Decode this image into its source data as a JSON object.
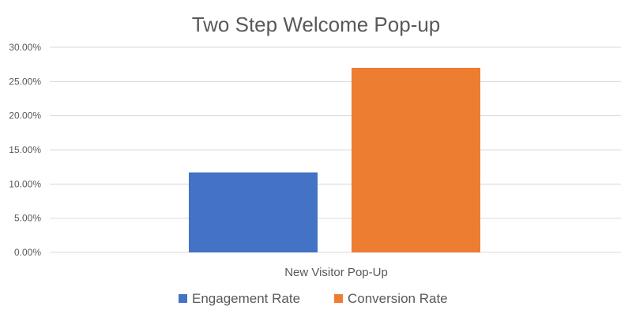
{
  "chart_data": {
    "type": "bar",
    "title": "Two Step Welcome Pop-up",
    "categories": [
      "New Visitor Pop-Up"
    ],
    "series": [
      {
        "name": "Engagement Rate",
        "values": [
          0.117
        ],
        "color": "#4472C4"
      },
      {
        "name": "Conversion Rate",
        "values": [
          0.27
        ],
        "color": "#ED7D31"
      }
    ],
    "ylim": [
      0,
      0.3
    ],
    "yticks": [
      0,
      0.05,
      0.1,
      0.15,
      0.2,
      0.25,
      0.3
    ],
    "ytick_labels": [
      "0.00%",
      "5.00%",
      "10.00%",
      "15.00%",
      "20.00%",
      "25.00%",
      "30.00%"
    ],
    "grid": true,
    "legend": "bottom",
    "colors": {
      "title": "#595959",
      "axis_text": "#595959",
      "grid": "#D9D9D9"
    }
  }
}
